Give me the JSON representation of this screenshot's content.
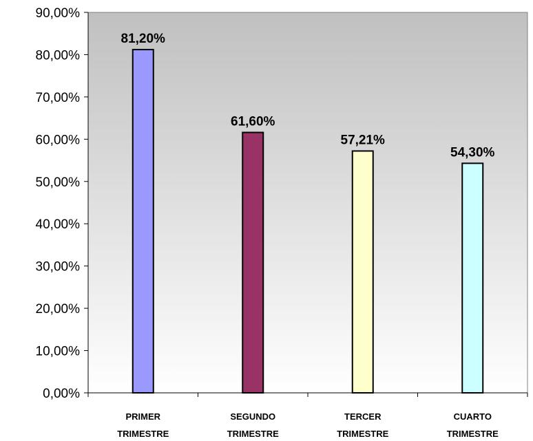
{
  "chart_data": {
    "type": "bar",
    "title": "",
    "xlabel": "",
    "ylabel": "",
    "categories": [
      [
        "PRIMER",
        "TRIMESTRE"
      ],
      [
        "SEGUNDO",
        "TRIMESTRE"
      ],
      [
        "TERCER",
        "TRIMESTRE"
      ],
      [
        "CUARTO",
        "TRIMESTRE"
      ]
    ],
    "values": [
      81.2,
      61.6,
      57.21,
      54.3
    ],
    "data_labels": [
      "81,20%",
      "61,60%",
      "57,21%",
      "54,30%"
    ],
    "bar_colors": [
      "#9999ff",
      "#993366",
      "#ffffcc",
      "#ccffff"
    ],
    "ylim": [
      0,
      90
    ],
    "yticks": [
      0,
      10,
      20,
      30,
      40,
      50,
      60,
      70,
      80,
      90
    ],
    "ytick_labels": [
      "0,00%",
      "10,00%",
      "20,00%",
      "30,00%",
      "40,00%",
      "50,00%",
      "60,00%",
      "70,00%",
      "80,00%",
      "90,00%"
    ],
    "plot_background": "gradient-gray",
    "grid": false,
    "legend": "none"
  }
}
